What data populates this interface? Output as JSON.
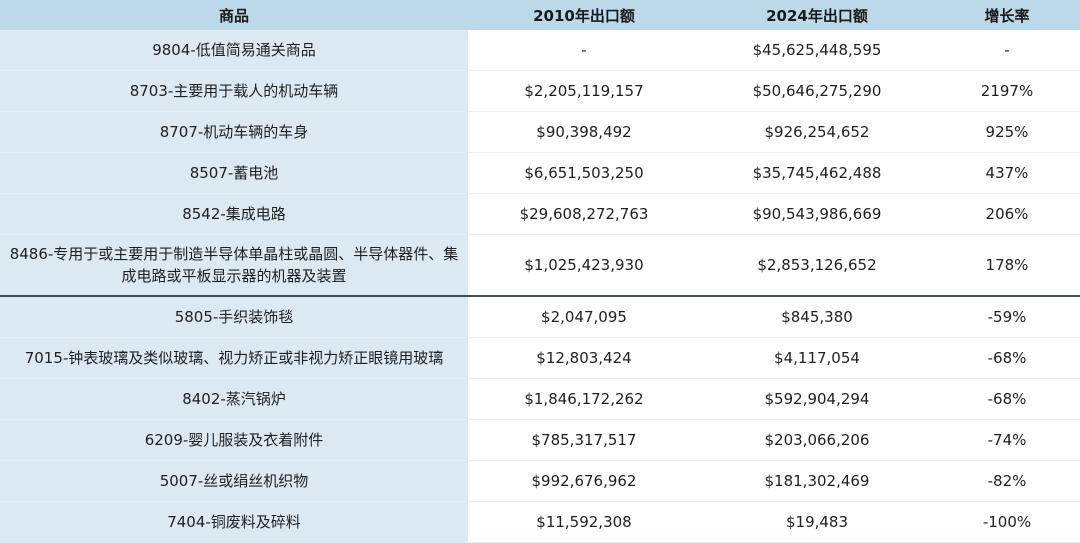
{
  "table": {
    "headers": [
      "商品",
      "2010年出口额",
      "2024年出口额",
      "增长率"
    ],
    "rows": [
      {
        "name": "9804-低值简易通关商品",
        "v2010": "-",
        "v2024": "$45,625,448,595",
        "growth": "-"
      },
      {
        "name": "8703-主要用于载人的机动车辆",
        "v2010": "$2,205,119,157",
        "v2024": "$50,646,275,290",
        "growth": "2197%"
      },
      {
        "name": "8707-机动车辆的车身",
        "v2010": "$90,398,492",
        "v2024": "$926,254,652",
        "growth": "925%"
      },
      {
        "name": "8507-蓄电池",
        "v2010": "$6,651,503,250",
        "v2024": "$35,745,462,488",
        "growth": "437%"
      },
      {
        "name": "8542-集成电路",
        "v2010": "$29,608,272,763",
        "v2024": "$90,543,986,669",
        "growth": "206%"
      },
      {
        "name": "8486-专用于或主要用于制造半导体单晶柱或晶圆、半导体器件、集成电路或平板显示器的机器及装置",
        "v2010": "$1,025,423,930",
        "v2024": "$2,853,126,652",
        "growth": "178%"
      },
      {
        "name": "5805-手织装饰毯",
        "v2010": "$2,047,095",
        "v2024": "$845,380",
        "growth": "-59%"
      },
      {
        "name": "7015-钟表玻璃及类似玻璃、视力矫正或非视力矫正眼镜用玻璃",
        "v2010": "$12,803,424",
        "v2024": "$4,117,054",
        "growth": "-68%"
      },
      {
        "name": "8402-蒸汽锅炉",
        "v2010": "$1,846,172,262",
        "v2024": "$592,904,294",
        "growth": "-68%"
      },
      {
        "name": "6209-婴儿服装及衣着附件",
        "v2010": "$785,317,517",
        "v2024": "$203,066,206",
        "growth": "-74%"
      },
      {
        "name": "5007-丝或绢丝机织物",
        "v2010": "$992,676,962",
        "v2024": "$181,302,469",
        "growth": "-82%"
      },
      {
        "name": "7404-铜废料及碎料",
        "v2010": "$11,592,308",
        "v2024": "$19,483",
        "growth": "-100%"
      }
    ]
  },
  "colors": {
    "header_bg": "#bcd9ea",
    "name_col_bg": "#dce9f3",
    "divider": "#3b4f6b"
  }
}
